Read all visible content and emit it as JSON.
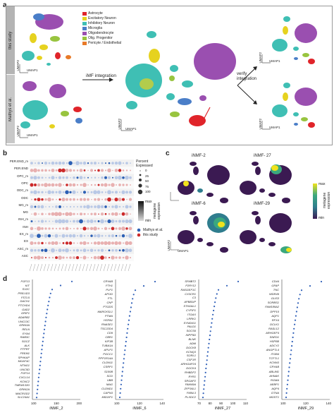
{
  "panel_a": {
    "letter": "a",
    "row_labels": [
      "this study",
      "Mathys et al."
    ],
    "step_labels": [
      "iMF integration",
      "verify\nintegration"
    ],
    "axis_x": "UMAP1",
    "axis_y": "UMAP2",
    "legend": [
      {
        "label": "Astrocyte",
        "color": "#e0242a"
      },
      {
        "label": "Excitatory Neuron",
        "color": "#e6d21f"
      },
      {
        "label": "Inhibitory Neuron",
        "color": "#3fbfb4"
      },
      {
        "label": "Microglia",
        "color": "#4a7ec8"
      },
      {
        "label": "Oligodendrocyte",
        "color": "#9a4fb0"
      },
      {
        "label": "Olig. Progenitor",
        "color": "#98c43f"
      },
      {
        "label": "Pericyte / Endothelial",
        "color": "#e87a28"
      }
    ]
  },
  "panel_b": {
    "letter": "b",
    "rows": [
      "PER.END_m",
      "PER.END",
      "OPC_m",
      "OPC",
      "ODC_m",
      "ODC",
      "MG_m",
      "MG",
      "INH_m",
      "INH",
      "EX_m",
      "EX",
      "ASC_m",
      "ASC"
    ],
    "size_legend_title": "Percent\nExpressed",
    "size_values": [
      "0",
      "25",
      "50",
      "75",
      "100"
    ],
    "color_legend_title": "metagene\nexpression",
    "color_max": "max",
    "color_min": "min",
    "dataset_legend": [
      {
        "label": "Mathys et al.",
        "color": "#2b5fb4"
      },
      {
        "label": "this study",
        "color": "#cc2a2a"
      }
    ]
  },
  "panel_c": {
    "letter": "c",
    "titles": [
      "iNMF-2",
      "iNMF- 27",
      "iNMF-6",
      "iNMF-29"
    ],
    "colorbar_title": "metagene\nexpression",
    "colorbar_max": "max",
    "colorbar_min": "min",
    "axis_x": "UMAP1",
    "axis_y": "UMAP2"
  },
  "panel_d": {
    "letter": "d",
    "columns": [
      {
        "title": "iNMF_2",
        "genes": [
          "FGF13",
          "KIT",
          "SV2C",
          "PRELID3",
          "FSTL5",
          "DACH1",
          "PTCHD4",
          "GAD2",
          "GRIP1",
          "ADARB2",
          "UNC13C",
          "GRIN3A",
          "RELN",
          "EYA4",
          "RAB3C",
          "SGCZ",
          "ALK",
          "PTPRT",
          "FREM1",
          "SPHKAP",
          "MGAT4C",
          "NTNG1",
          "UNC5D",
          "FGF14",
          "CXCL14",
          "KCNC2",
          "TMEM132D",
          "GRIN2A",
          "MACROD2",
          "SLC24A1"
        ],
        "ticks": [
          "100",
          "150",
          "200"
        ]
      },
      {
        "title": "iNMF_6",
        "genes": [
          "CRYAB",
          "FTH1",
          "PLP1",
          "APOD",
          "FTL",
          "CNP",
          "PTGDS",
          "MARCKSL1",
          "PTMA",
          "HSPA1",
          "RNASE1",
          "TSC22D4",
          "CD9",
          "CBR1",
          "KIF3B",
          "TUBA1A",
          "APLP1",
          "PGCC1",
          "PPP1R14A",
          "CLDN11",
          "CSRP1",
          "S100B",
          "SCD",
          "UBB",
          "MAG",
          "CLDND1",
          "CAPN3",
          "MID1IP1"
        ],
        "ticks": [
          "100",
          "120",
          "140"
        ]
      },
      {
        "title": "iNMF_27",
        "genes": [
          "SFMBT2",
          "P2RY12",
          "RASGEF1C",
          "CX3CR1",
          "C3",
          "APBB1IP",
          "ST6GAL1",
          "CYFIP1",
          "ITGAX",
          "LRRK1",
          "SYNDIG1",
          "PALD1",
          "SOCS6",
          "INPP5D",
          "BLNK",
          "ADM",
          "DOCK8",
          "KCNQ3",
          "SORL1",
          "CSF1R",
          "ARHGAP24",
          "DOCK4",
          "RHBDF2",
          "RYR1",
          "SRGAP2",
          "FAM49A",
          "ZFP36L1",
          "FMNL3",
          "PLXDC2"
        ],
        "ticks": [
          "70",
          "80",
          "90",
          "100",
          "110"
        ]
      },
      {
        "title": "iNMF_29",
        "genes": [
          "CD44",
          "GFAP",
          "TNC",
          "WDR49",
          "GLIS3",
          "SORBS1",
          "FAM189A2",
          "DPP10",
          "AQP1",
          "RFX4",
          "DCLK1",
          "RASL12",
          "ARHGEF4",
          "SNED1",
          "HSPB8",
          "ADCY2",
          "ANGPTL4",
          "ITGB4",
          "TCF7L1",
          "KCNN3",
          "CRYAB",
          "ABLIM1",
          "AHNAK",
          "RGMA",
          "AEBP1",
          "AQP4",
          "DTNA",
          "MGST1"
        ],
        "ticks": [
          "100",
          "120",
          "140"
        ]
      }
    ]
  }
}
